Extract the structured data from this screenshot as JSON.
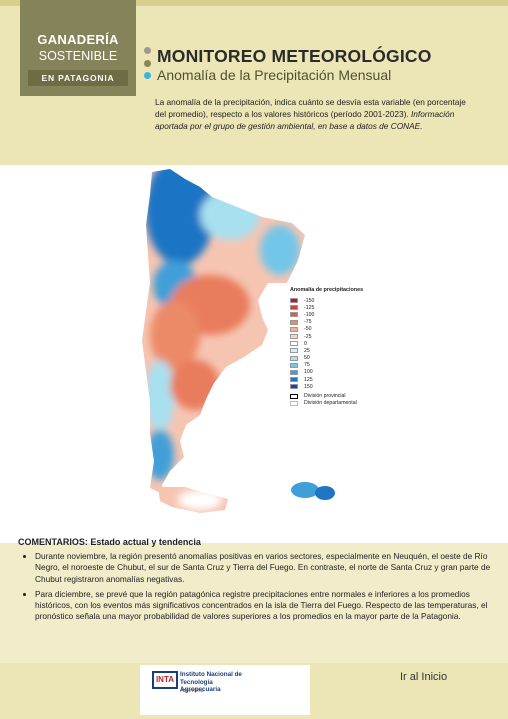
{
  "logo": {
    "line1": "GANADERÍA",
    "line2": "SOSTENIBLE",
    "line3": "EN PATAGONIA"
  },
  "header": {
    "title": "MONITOREO METEOROLÓGICO",
    "subtitle": "Anomalía de la Precipitación Mensual",
    "description": "La anomalía de la precipitación, indica cuánto se desvía esta variable (en porcentaje del promedio), respecto a los valores históricos (período 2001-2023). ",
    "description_italic": "Información aportada por el grupo de gestión ambiental, en base a datos de CONAE."
  },
  "legend": {
    "title": "Anomalía de precipitaciones",
    "items": [
      {
        "label": "-150",
        "color": "#c8102e"
      },
      {
        "label": "-125",
        "color": "#d93a3a"
      },
      {
        "label": "-100",
        "color": "#e25b45"
      },
      {
        "label": "-75",
        "color": "#ec8a68"
      },
      {
        "label": "-50",
        "color": "#f3ad94"
      },
      {
        "label": "-25",
        "color": "#f8d3c6"
      },
      {
        "label": "0",
        "color": "#ffffff"
      },
      {
        "label": "25",
        "color": "#d4f0f7"
      },
      {
        "label": "50",
        "color": "#a8e0f0"
      },
      {
        "label": "75",
        "color": "#72c6e8"
      },
      {
        "label": "100",
        "color": "#3f9fd8"
      },
      {
        "label": "125",
        "color": "#1f74c4"
      },
      {
        "label": "150",
        "color": "#0b4aa8"
      }
    ],
    "lines": [
      "División provincial",
      "División departamental"
    ]
  },
  "comments": {
    "heading": "COMENTARIOS: Estado actual y tendencia",
    "bullets": [
      "Durante noviembre, la región presentó anomalías positivas en varios sectores, especialmente en Neuquén, el oeste de Río Negro, el noroeste de Chubut, el sur de Santa Cruz y Tierra del Fuego. En contraste, el norte de Santa Cruz y gran parte de Chubut registraron anomalías negativas.",
      "Para diciembre, se prevé que la región patagónica registre precipitaciones entre normales e inferiores a los promedios históricos, con los eventos más significativos concentrados en la isla de Tierra del Fuego. Respecto de las temperaturas, el pronóstico señala una mayor probabilidad de valores superiores a los promedios en la mayor parte de la Patagonia."
    ]
  },
  "footer": {
    "inta_logo": "INTA",
    "inta_name": "Instituto Nacional de Tecnología Agropecuaria",
    "inta_country": "Argentina",
    "home_link": "Ir al Inicio"
  }
}
